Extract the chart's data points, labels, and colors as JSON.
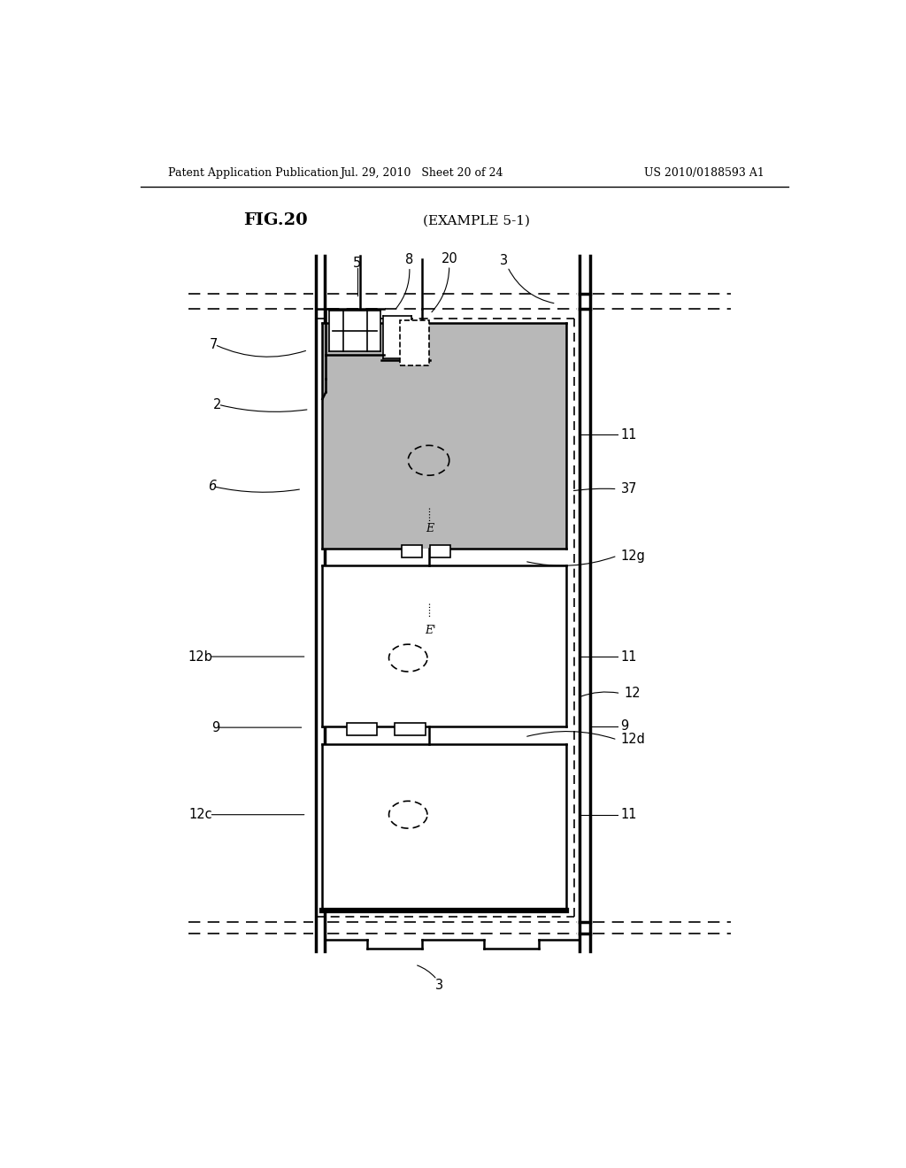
{
  "header_left": "Patent Application Publication",
  "header_center": "Jul. 29, 2010   Sheet 20 of 24",
  "header_right": "US 2010/0188593 A1",
  "fig_label": "FIG.20",
  "subtitle": "(EXAMPLE 5-1)",
  "bg_color": "#ffffff",
  "gray_fill": "#b8b8b8",
  "dark_gray": "#909090"
}
